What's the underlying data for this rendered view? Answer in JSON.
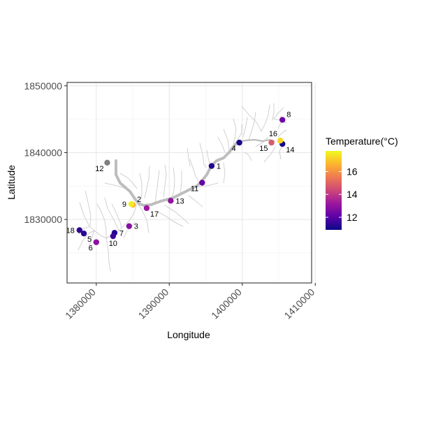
{
  "chart_data": {
    "type": "scatter",
    "title": "",
    "xlabel": "Longitude",
    "ylabel": "Latitude",
    "xlim": [
      1376000,
      1409500
    ],
    "ylim": [
      1820500,
      1850500
    ],
    "x_ticks": [
      1380000,
      1390000,
      1400000,
      1410000
    ],
    "x_tick_labels": [
      "1380000",
      "1390000",
      "1400000",
      "1410000"
    ],
    "y_ticks": [
      1830000,
      1840000,
      1850000
    ],
    "y_tick_labels": [
      "1830000",
      "1840000",
      "1850000"
    ],
    "grid": true,
    "legend": {
      "title": "Temperature(°C)",
      "position": "right",
      "ticks": [
        12,
        14,
        16
      ],
      "tick_labels": [
        "12",
        "14",
        "16"
      ],
      "range": [
        10.9,
        17.8
      ],
      "colors": [
        "#0d0887",
        "#5c01a6",
        "#9c179e",
        "#cc4778",
        "#ed7953",
        "#fdb42f",
        "#f0f921"
      ]
    },
    "colors": {
      "mainstem": "#bdbdbd",
      "tributary": "#c0c0c0"
    },
    "points": [
      {
        "label": "1",
        "x": 1395800,
        "y": 1838000,
        "temp": 11.2,
        "label_pos": "right"
      },
      {
        "label": "2",
        "x": 1385000,
        "y": 1832200,
        "temp": 16.6,
        "label_pos": "above-right"
      },
      {
        "label": "3",
        "x": 1384500,
        "y": 1829000,
        "temp": 12.8,
        "label_pos": "right"
      },
      {
        "label": "4",
        "x": 1399600,
        "y": 1841500,
        "temp": 11.0,
        "label_pos": "below-left"
      },
      {
        "label": "5",
        "x": 1378300,
        "y": 1827900,
        "temp": 11.3,
        "label_pos": "below-right"
      },
      {
        "label": "6",
        "x": 1380000,
        "y": 1826600,
        "temp": 12.9,
        "label_pos": "below-left"
      },
      {
        "label": "7",
        "x": 1382500,
        "y": 1828000,
        "temp": 11.2,
        "label_pos": "right"
      },
      {
        "label": "8",
        "x": 1405500,
        "y": 1844900,
        "temp": 12.4,
        "label_pos": "above-right"
      },
      {
        "label": "9",
        "x": 1384800,
        "y": 1832300,
        "temp": 17.6,
        "label_pos": "left"
      },
      {
        "label": "10",
        "x": 1382300,
        "y": 1827500,
        "temp": 11.6,
        "label_pos": "below"
      },
      {
        "label": "11",
        "x": 1394500,
        "y": 1835500,
        "temp": 12.2,
        "label_pos": "below-left"
      },
      {
        "label": "12",
        "x": 1381500,
        "y": 1838500,
        "temp": null,
        "label_pos": "below-left"
      },
      {
        "label": "13",
        "x": 1390200,
        "y": 1832800,
        "temp": 13.0,
        "label_pos": "right"
      },
      {
        "label": "14",
        "x": 1405500,
        "y": 1841300,
        "temp": 11.0,
        "label_pos": "below-right"
      },
      {
        "label": "15",
        "x": 1404000,
        "y": 1841500,
        "temp": 14.8,
        "label_pos": "below-left"
      },
      {
        "label": "16",
        "x": 1405200,
        "y": 1841800,
        "temp": 17.2,
        "label_pos": "above-left"
      },
      {
        "label": "17",
        "x": 1386900,
        "y": 1831700,
        "temp": 13.2,
        "label_pos": "below-right"
      },
      {
        "label": "18",
        "x": 1377700,
        "y": 1828400,
        "temp": 11.4,
        "label_pos": "left"
      }
    ]
  }
}
